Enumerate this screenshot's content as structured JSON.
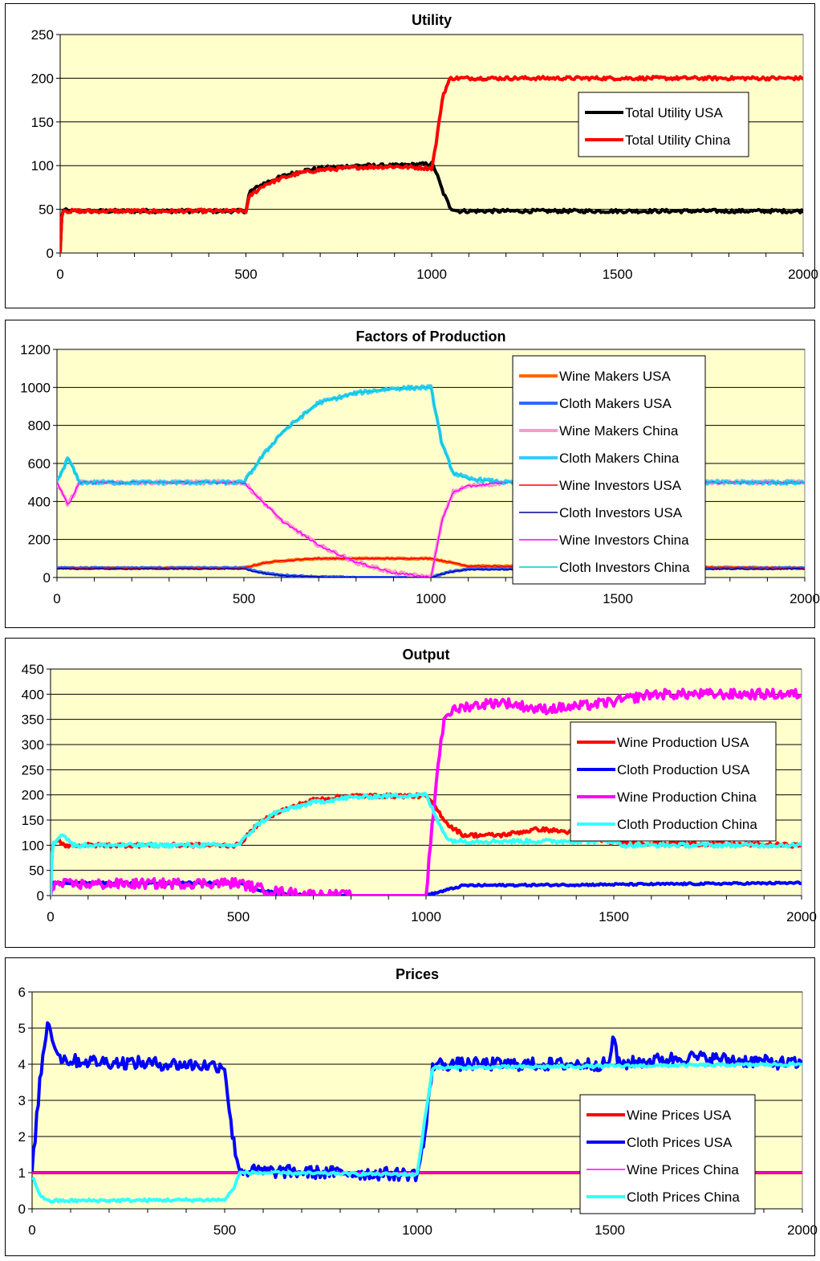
{
  "colors": {
    "plot_bg": "#FFFFCC"
  },
  "chart_data": [
    {
      "type": "line",
      "title": "Utility",
      "xlim": [
        0,
        2000
      ],
      "ylim": [
        0,
        250
      ],
      "xticks": [
        0,
        500,
        1000,
        1500,
        2000
      ],
      "yticks": [
        0,
        50,
        100,
        150,
        200,
        250
      ],
      "legend_position": "top-right",
      "grid": true,
      "series": [
        {
          "name": "Total Utility USA",
          "color": "#000000",
          "width": 4,
          "noise": 2,
          "points": [
            [
              0,
              0
            ],
            [
              5,
              50
            ],
            [
              20,
              48
            ],
            [
              500,
              48
            ],
            [
              510,
              70
            ],
            [
              550,
              80
            ],
            [
              600,
              88
            ],
            [
              650,
              94
            ],
            [
              700,
              97
            ],
            [
              800,
              100
            ],
            [
              900,
              100
            ],
            [
              1000,
              102
            ],
            [
              1010,
              95
            ],
            [
              1030,
              70
            ],
            [
              1050,
              52
            ],
            [
              1070,
              48
            ],
            [
              2000,
              48
            ]
          ]
        },
        {
          "name": "Total Utility China",
          "color": "#FF0000",
          "width": 4,
          "noise": 2,
          "points": [
            [
              0,
              0
            ],
            [
              5,
              50
            ],
            [
              20,
              48
            ],
            [
              500,
              48
            ],
            [
              510,
              65
            ],
            [
              550,
              78
            ],
            [
              600,
              86
            ],
            [
              650,
              92
            ],
            [
              700,
              95
            ],
            [
              800,
              98
            ],
            [
              900,
              99
            ],
            [
              1000,
              97
            ],
            [
              1010,
              120
            ],
            [
              1030,
              180
            ],
            [
              1050,
              200
            ],
            [
              2000,
              200
            ]
          ]
        }
      ]
    },
    {
      "type": "line",
      "title": "Factors of Production",
      "xlim": [
        0,
        2000
      ],
      "ylim": [
        0,
        1200
      ],
      "xticks": [
        0,
        500,
        1000,
        1500,
        2000
      ],
      "yticks": [
        0,
        200,
        400,
        600,
        800,
        1000,
        1200
      ],
      "legend_position": "top-right",
      "grid": true,
      "series": [
        {
          "name": "Wine Makers USA",
          "color": "#FF6600",
          "width": 4,
          "noise": 3,
          "points": [
            [
              0,
              50
            ],
            [
              500,
              50
            ],
            [
              550,
              75
            ],
            [
              600,
              88
            ],
            [
              700,
              100
            ],
            [
              1000,
              100
            ],
            [
              1050,
              80
            ],
            [
              1100,
              60
            ],
            [
              1500,
              55
            ],
            [
              2000,
              50
            ]
          ]
        },
        {
          "name": "Cloth Makers USA",
          "color": "#3366FF",
          "width": 4,
          "noise": 3,
          "points": [
            [
              0,
              50
            ],
            [
              500,
              50
            ],
            [
              550,
              25
            ],
            [
              600,
              12
            ],
            [
              700,
              3
            ],
            [
              800,
              0
            ],
            [
              1000,
              0
            ],
            [
              1050,
              30
            ],
            [
              1100,
              45
            ],
            [
              2000,
              50
            ]
          ]
        },
        {
          "name": "Wine Makers China",
          "color": "#FF99CC",
          "width": 4,
          "noise": 10,
          "points": [
            [
              0,
              500
            ],
            [
              30,
              380
            ],
            [
              60,
              500
            ],
            [
              500,
              500
            ],
            [
              550,
              400
            ],
            [
              600,
              300
            ],
            [
              700,
              170
            ],
            [
              800,
              80
            ],
            [
              900,
              25
            ],
            [
              1000,
              0
            ],
            [
              1030,
              300
            ],
            [
              1060,
              450
            ],
            [
              1100,
              480
            ],
            [
              1200,
              500
            ],
            [
              2000,
              500
            ]
          ]
        },
        {
          "name": "Cloth Makers China",
          "color": "#33CCFF",
          "width": 4,
          "noise": 10,
          "points": [
            [
              0,
              500
            ],
            [
              30,
              630
            ],
            [
              60,
              500
            ],
            [
              500,
              500
            ],
            [
              550,
              640
            ],
            [
              600,
              760
            ],
            [
              700,
              920
            ],
            [
              800,
              970
            ],
            [
              900,
              995
            ],
            [
              1000,
              1000
            ],
            [
              1030,
              700
            ],
            [
              1060,
              550
            ],
            [
              1100,
              520
            ],
            [
              1200,
              500
            ],
            [
              2000,
              500
            ]
          ]
        },
        {
          "name": "Wine Investors USA",
          "color": "#FF0000",
          "width": 1.5,
          "noise": 3,
          "points": [
            [
              0,
              50
            ],
            [
              500,
              50
            ],
            [
              550,
              75
            ],
            [
              600,
              88
            ],
            [
              700,
              100
            ],
            [
              1000,
              100
            ],
            [
              1050,
              80
            ],
            [
              1100,
              60
            ],
            [
              1500,
              55
            ],
            [
              2000,
              50
            ]
          ]
        },
        {
          "name": "Cloth Investors USA",
          "color": "#000099",
          "width": 1.5,
          "noise": 3,
          "points": [
            [
              0,
              45
            ],
            [
              500,
              45
            ],
            [
              550,
              22
            ],
            [
              600,
              10
            ],
            [
              700,
              2
            ],
            [
              800,
              0
            ],
            [
              1000,
              0
            ],
            [
              1050,
              28
            ],
            [
              1100,
              42
            ],
            [
              2000,
              45
            ]
          ]
        },
        {
          "name": "Wine Investors China",
          "color": "#FF00FF",
          "width": 1.5,
          "noise": 6,
          "points": [
            [
              0,
              500
            ],
            [
              30,
              380
            ],
            [
              60,
              500
            ],
            [
              500,
              500
            ],
            [
              550,
              400
            ],
            [
              600,
              300
            ],
            [
              700,
              170
            ],
            [
              800,
              80
            ],
            [
              900,
              25
            ],
            [
              1000,
              0
            ],
            [
              1030,
              300
            ],
            [
              1060,
              450
            ],
            [
              1100,
              480
            ],
            [
              1200,
              500
            ],
            [
              2000,
              500
            ]
          ]
        },
        {
          "name": "Cloth Investors China",
          "color": "#00CCCC",
          "width": 1.5,
          "noise": 6,
          "points": [
            [
              0,
              500
            ],
            [
              30,
              630
            ],
            [
              60,
              500
            ],
            [
              500,
              500
            ],
            [
              550,
              640
            ],
            [
              600,
              760
            ],
            [
              700,
              920
            ],
            [
              800,
              970
            ],
            [
              900,
              995
            ],
            [
              1000,
              1000
            ],
            [
              1030,
              700
            ],
            [
              1060,
              550
            ],
            [
              1100,
              520
            ],
            [
              1200,
              500
            ],
            [
              2000,
              500
            ]
          ]
        }
      ]
    },
    {
      "type": "line",
      "title": "Output",
      "xlim": [
        0,
        2000
      ],
      "ylim": [
        0,
        450
      ],
      "xticks": [
        0,
        500,
        1000,
        1500,
        2000
      ],
      "yticks": [
        0,
        50,
        100,
        150,
        200,
        250,
        300,
        350,
        400,
        450
      ],
      "legend_position": "right",
      "grid": true,
      "series": [
        {
          "name": "Wine Production USA",
          "color": "#FF0000",
          "width": 4,
          "noise": 4,
          "points": [
            [
              0,
              0
            ],
            [
              5,
              100
            ],
            [
              20,
              110
            ],
            [
              40,
              100
            ],
            [
              500,
              100
            ],
            [
              550,
              140
            ],
            [
              600,
              165
            ],
            [
              700,
              190
            ],
            [
              800,
              198
            ],
            [
              1000,
              198
            ],
            [
              1030,
              170
            ],
            [
              1060,
              140
            ],
            [
              1100,
              120
            ],
            [
              1200,
              120
            ],
            [
              1300,
              132
            ],
            [
              1400,
              125
            ],
            [
              1500,
              105
            ],
            [
              2000,
              100
            ]
          ]
        },
        {
          "name": "Cloth Production USA",
          "color": "#0000FF",
          "width": 4,
          "noise": 2,
          "points": [
            [
              0,
              0
            ],
            [
              5,
              25
            ],
            [
              500,
              25
            ],
            [
              550,
              12
            ],
            [
              600,
              5
            ],
            [
              700,
              0
            ],
            [
              1000,
              0
            ],
            [
              1050,
              10
            ],
            [
              1100,
              20
            ],
            [
              1500,
              22
            ],
            [
              2000,
              25
            ]
          ]
        },
        {
          "name": "Wine Production China",
          "color": "#FF00FF",
          "width": 4,
          "noise": 10,
          "points": [
            [
              0,
              0
            ],
            [
              5,
              22
            ],
            [
              500,
              25
            ],
            [
              550,
              15
            ],
            [
              600,
              8
            ],
            [
              700,
              2
            ],
            [
              800,
              0
            ],
            [
              1000,
              0
            ],
            [
              1030,
              250
            ],
            [
              1050,
              360
            ],
            [
              1100,
              375
            ],
            [
              1200,
              385
            ],
            [
              1300,
              370
            ],
            [
              1400,
              375
            ],
            [
              1500,
              385
            ],
            [
              1600,
              400
            ],
            [
              1800,
              400
            ],
            [
              2000,
              400
            ]
          ]
        },
        {
          "name": "Cloth Production China",
          "color": "#33FFFF",
          "width": 4,
          "noise": 4,
          "points": [
            [
              0,
              0
            ],
            [
              5,
              100
            ],
            [
              30,
              125
            ],
            [
              60,
              100
            ],
            [
              500,
              100
            ],
            [
              550,
              140
            ],
            [
              600,
              165
            ],
            [
              700,
              185
            ],
            [
              800,
              195
            ],
            [
              900,
              198
            ],
            [
              1000,
              200
            ],
            [
              1030,
              150
            ],
            [
              1060,
              110
            ],
            [
              1100,
              108
            ],
            [
              1500,
              108
            ],
            [
              1520,
              100
            ],
            [
              2000,
              100
            ]
          ]
        }
      ]
    },
    {
      "type": "line",
      "title": "Prices",
      "xlim": [
        0,
        2000
      ],
      "ylim": [
        0,
        6
      ],
      "xticks": [
        0,
        500,
        1000,
        1500,
        2000
      ],
      "yticks": [
        0,
        1,
        2,
        3,
        4,
        5,
        6
      ],
      "legend_position": "bottom-right",
      "grid": true,
      "series": [
        {
          "name": "Wine Prices USA",
          "color": "#FF0000",
          "width": 4,
          "noise": 0,
          "points": [
            [
              0,
              1
            ],
            [
              2000,
              1
            ]
          ]
        },
        {
          "name": "Cloth Prices USA",
          "color": "#0000FF",
          "width": 4,
          "noise": 0.18,
          "points": [
            [
              0,
              1
            ],
            [
              20,
              3.5
            ],
            [
              40,
              5.2
            ],
            [
              70,
              4.2
            ],
            [
              100,
              4.1
            ],
            [
              500,
              3.95
            ],
            [
              520,
              2
            ],
            [
              540,
              1.05
            ],
            [
              1000,
              0.95
            ],
            [
              1020,
              2
            ],
            [
              1040,
              4
            ],
            [
              1500,
              4
            ],
            [
              1510,
              5
            ],
            [
              1520,
              4
            ],
            [
              1700,
              4.2
            ],
            [
              2000,
              4
            ]
          ]
        },
        {
          "name": "Wine Prices China",
          "color": "#FF00FF",
          "width": 1.5,
          "noise": 0,
          "points": [
            [
              0,
              1
            ],
            [
              2000,
              1
            ]
          ]
        },
        {
          "name": "Cloth Prices China",
          "color": "#33FFFF",
          "width": 4,
          "noise": 0.04,
          "points": [
            [
              0,
              0.9
            ],
            [
              20,
              0.4
            ],
            [
              40,
              0.22
            ],
            [
              500,
              0.25
            ],
            [
              520,
              0.5
            ],
            [
              540,
              1.0
            ],
            [
              1000,
              0.95
            ],
            [
              1020,
              2.5
            ],
            [
              1040,
              3.9
            ],
            [
              2000,
              4.0
            ]
          ]
        }
      ]
    }
  ]
}
